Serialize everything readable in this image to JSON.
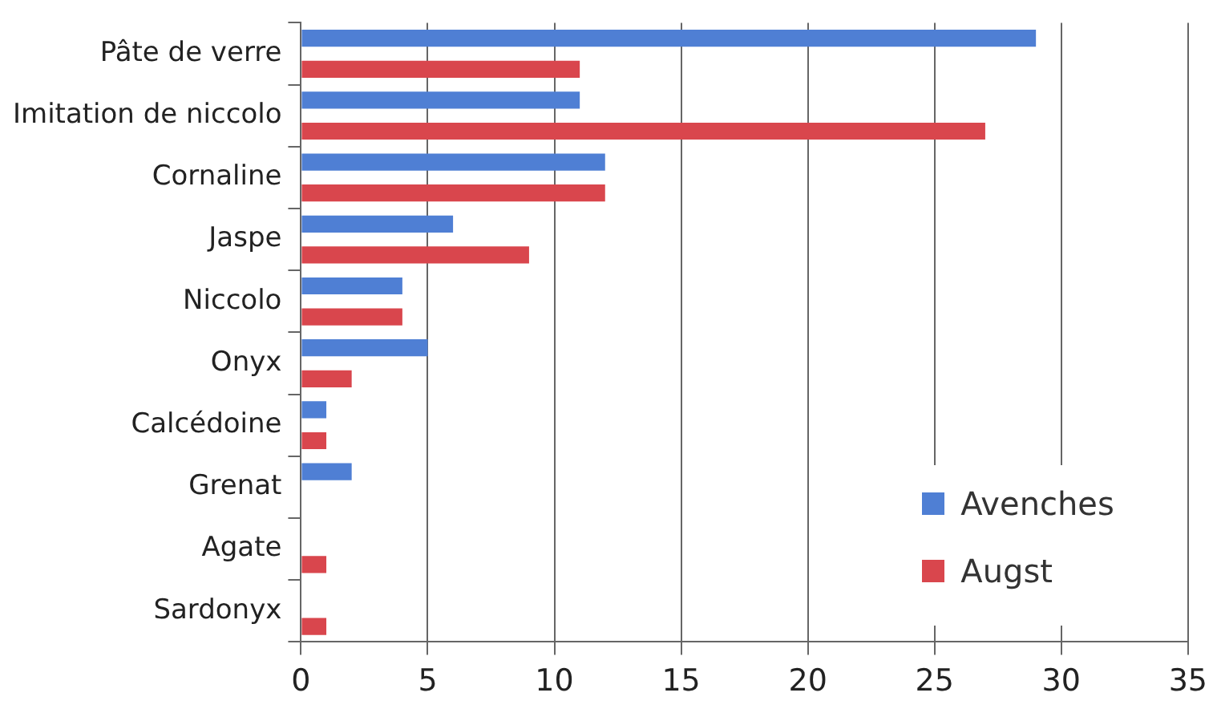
{
  "chart_data": {
    "type": "bar",
    "orientation": "horizontal",
    "categories": [
      "Pâte de verre",
      "Imitation de niccolo",
      "Cornaline",
      "Jaspe",
      "Niccolo",
      "Onyx",
      "Calcédoine",
      "Grenat",
      "Agate",
      "Sardonyx"
    ],
    "series": [
      {
        "name": "Avenches",
        "color": "#4f7fd4",
        "values": [
          29,
          11,
          12,
          6,
          4,
          5,
          1,
          2,
          0,
          0
        ]
      },
      {
        "name": "Augst",
        "color": "#d9464d",
        "values": [
          11,
          27,
          12,
          9,
          4,
          2,
          1,
          0,
          1,
          1
        ]
      }
    ],
    "xlim": [
      0,
      35
    ],
    "xticks": [
      0,
      5,
      10,
      15,
      20,
      25,
      30,
      35
    ],
    "grid": "x",
    "legend": "bottom right"
  }
}
